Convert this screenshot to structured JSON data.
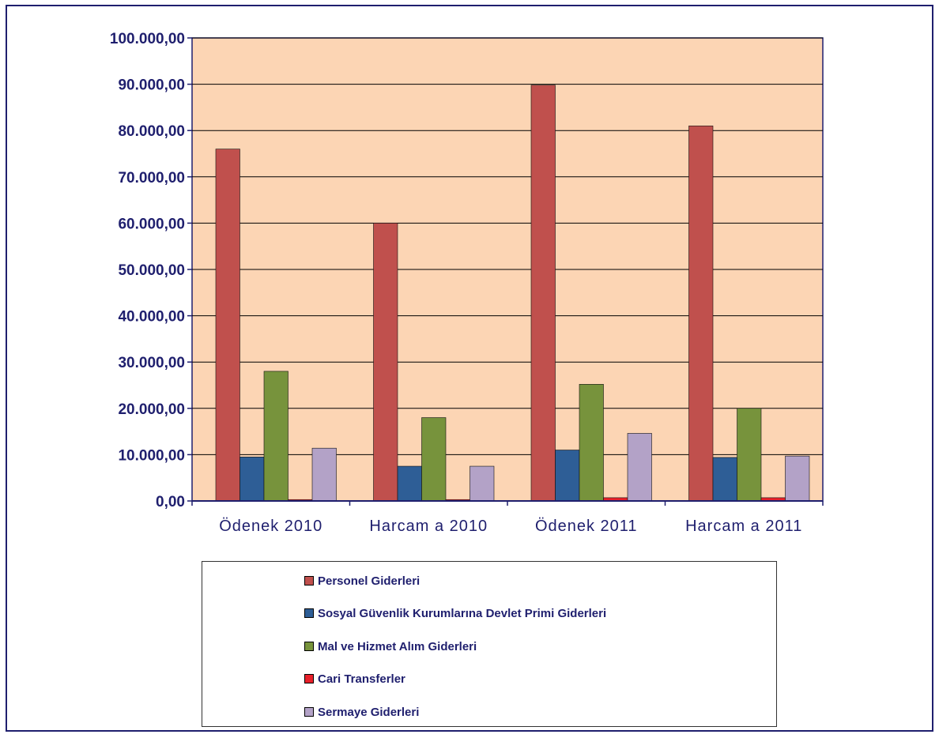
{
  "chart_data": {
    "type": "bar",
    "categories": [
      "Ödenek 2010",
      "Harcam a 2010",
      "Ödenek 2011",
      "Harcam a 2011"
    ],
    "series": [
      {
        "name": "Personel Giderleri",
        "color": "#c0504d",
        "values": [
          76000,
          60000,
          89800,
          81000
        ]
      },
      {
        "name": "Sosyal Güvenlik Kurumlarına Devlet Primi Giderleri",
        "color": "#2e5e96",
        "values": [
          9500,
          7500,
          11000,
          9400
        ]
      },
      {
        "name": "Mal ve Hizmet Alım Giderleri",
        "color": "#77933c",
        "values": [
          28000,
          18000,
          25200,
          20000
        ]
      },
      {
        "name": "Cari Transferler",
        "color": "#e8202a",
        "values": [
          300,
          300,
          700,
          700
        ]
      },
      {
        "name": "Sermaye Giderleri",
        "color": "#b3a2c7",
        "values": [
          11400,
          7500,
          14600,
          9700
        ]
      }
    ],
    "ylim": [
      0,
      100000
    ],
    "yticks": [
      0,
      10000,
      20000,
      30000,
      40000,
      50000,
      60000,
      70000,
      80000,
      90000,
      100000
    ],
    "ytick_labels": [
      "0,00",
      "10.000,00",
      "20.000,00",
      "30.000,00",
      "40.000,00",
      "50.000,00",
      "60.000,00",
      "70.000,00",
      "80.000,00",
      "90.000,00",
      "100.000,00"
    ],
    "xlabel": "",
    "ylabel": "",
    "title": "",
    "grid": true,
    "legend_position": "bottom",
    "plot_background": "#fcd5b4"
  }
}
